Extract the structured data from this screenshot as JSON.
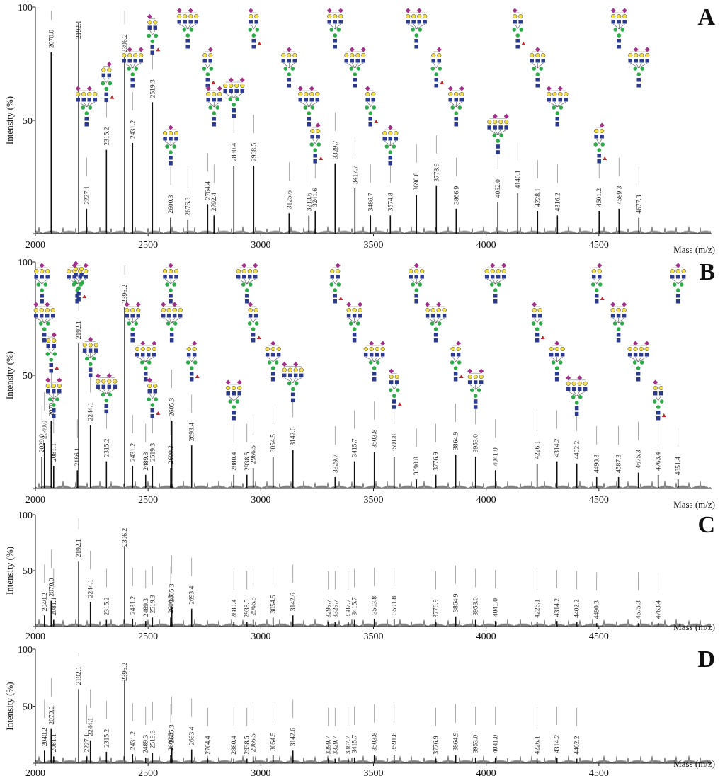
{
  "colors": {
    "hexnac": "#2b3a8c",
    "hexose": "#2eaa4a",
    "galactose": "#f4e04d",
    "neuac": "#a0308a",
    "fucose": "#c0282d",
    "unknown": "#ffffff"
  },
  "chart_data": [
    {
      "panel": "A",
      "type": "bar",
      "xlim": [
        2000,
        5000
      ],
      "ylim": [
        0,
        100
      ],
      "ylabel": "Intensity (%)",
      "xlabel": "Mass (m/z)",
      "yticks": [
        0,
        50,
        100
      ],
      "xticks": [
        2000,
        2500,
        3000,
        3500,
        4000,
        4500
      ],
      "peaks": [
        {
          "mz": 2070.0,
          "y": 80,
          "label": "2070.0"
        },
        {
          "mz": 2192.1,
          "y": 93,
          "label": "2192.1"
        },
        {
          "mz": 2227.1,
          "y": 11,
          "label": "2227.1"
        },
        {
          "mz": 2315.2,
          "y": 37,
          "label": "2315.2"
        },
        {
          "mz": 2396.2,
          "y": 78,
          "label": "2396.2"
        },
        {
          "mz": 2431.2,
          "y": 40,
          "label": "2431.2"
        },
        {
          "mz": 2519.3,
          "y": 58,
          "label": "2519.3"
        },
        {
          "mz": 2600.3,
          "y": 7,
          "label": "2600.3"
        },
        {
          "mz": 2676.3,
          "y": 6,
          "label": "2676.3"
        },
        {
          "mz": 2764.4,
          "y": 13,
          "label": "2764.4"
        },
        {
          "mz": 2792.4,
          "y": 8,
          "label": "2792.4"
        },
        {
          "mz": 2880.4,
          "y": 30,
          "label": "2880.4"
        },
        {
          "mz": 2968.5,
          "y": 30,
          "label": "2968.5"
        },
        {
          "mz": 3125.6,
          "y": 9,
          "label": "3125.6"
        },
        {
          "mz": 3213.6,
          "y": 8,
          "label": "3213.6"
        },
        {
          "mz": 3241.6,
          "y": 10,
          "label": "3241.6"
        },
        {
          "mz": 3329.7,
          "y": 31,
          "label": "3329.7"
        },
        {
          "mz": 3417.7,
          "y": 20,
          "label": "3417.7"
        },
        {
          "mz": 3486.7,
          "y": 8,
          "label": "3486.7"
        },
        {
          "mz": 3574.8,
          "y": 8,
          "label": "3574.8"
        },
        {
          "mz": 3690.8,
          "y": 17,
          "label": "3690.8"
        },
        {
          "mz": 3778.9,
          "y": 21,
          "label": "3778.9"
        },
        {
          "mz": 3866.9,
          "y": 11,
          "label": "3866.9"
        },
        {
          "mz": 4052.0,
          "y": 14,
          "label": "4052.0"
        },
        {
          "mz": 4140.1,
          "y": 18,
          "label": "4140.1"
        },
        {
          "mz": 4228.1,
          "y": 10,
          "label": "4228.1"
        },
        {
          "mz": 4316.2,
          "y": 8,
          "label": "4316.2"
        },
        {
          "mz": 4501.2,
          "y": 10,
          "label": "4501.2"
        },
        {
          "mz": 4589.3,
          "y": 11,
          "label": "4589.3"
        },
        {
          "mz": 4677.3,
          "y": 7,
          "label": "4677.3"
        }
      ]
    },
    {
      "panel": "B",
      "type": "bar",
      "xlim": [
        2000,
        5000
      ],
      "ylim": [
        0,
        100
      ],
      "ylabel": "Intensity (%)",
      "xlabel": "Mass (m/z)",
      "yticks": [
        0,
        50,
        100
      ],
      "xticks": [
        2000,
        2500,
        3000,
        3500,
        4000,
        4500
      ],
      "peaks": [
        {
          "mz": 2029.0,
          "y": 14,
          "label": "2029.0"
        },
        {
          "mz": 2040.0,
          "y": 20,
          "label": "2040.0"
        },
        {
          "mz": 2070.0,
          "y": 30,
          "label": "2070.0"
        },
        {
          "mz": 2081.1,
          "y": 10,
          "label": "2081.1"
        },
        {
          "mz": 2186.1,
          "y": 8,
          "label": "2186.1"
        },
        {
          "mz": 2192.1,
          "y": 64,
          "label": "2192.1"
        },
        {
          "mz": 2244.1,
          "y": 28,
          "label": "2244.1"
        },
        {
          "mz": 2315.2,
          "y": 12,
          "label": "2315.2"
        },
        {
          "mz": 2396.2,
          "y": 80,
          "label": "2396.2"
        },
        {
          "mz": 2431.2,
          "y": 10,
          "label": "2431.2"
        },
        {
          "mz": 2489.3,
          "y": 6,
          "label": "2489.3"
        },
        {
          "mz": 2519.3,
          "y": 10,
          "label": "2519.3"
        },
        {
          "mz": 2600.3,
          "y": 9,
          "label": "2600.3"
        },
        {
          "mz": 2605.3,
          "y": 30,
          "label": "2605.3"
        },
        {
          "mz": 2693.4,
          "y": 19,
          "label": "2693.4"
        },
        {
          "mz": 2880.4,
          "y": 6,
          "label": "2880.4"
        },
        {
          "mz": 2938.5,
          "y": 6,
          "label": "2938.5"
        },
        {
          "mz": 2966.5,
          "y": 9,
          "label": "2966.5"
        },
        {
          "mz": 3054.5,
          "y": 14,
          "label": "3054.5"
        },
        {
          "mz": 3142.6,
          "y": 17,
          "label": "3142.6"
        },
        {
          "mz": 3329.7,
          "y": 5,
          "label": "3329.7"
        },
        {
          "mz": 3415.7,
          "y": 12,
          "label": "3415.7"
        },
        {
          "mz": 3503.8,
          "y": 16,
          "label": "3503.8"
        },
        {
          "mz": 3591.8,
          "y": 14,
          "label": "3591.8"
        },
        {
          "mz": 3690.8,
          "y": 4,
          "label": "3690.8"
        },
        {
          "mz": 3776.9,
          "y": 6,
          "label": "3776.9"
        },
        {
          "mz": 3864.9,
          "y": 15,
          "label": "3864.9"
        },
        {
          "mz": 3953.0,
          "y": 14,
          "label": "3953.0"
        },
        {
          "mz": 4041.0,
          "y": 8,
          "label": "4041.0"
        },
        {
          "mz": 4226.1,
          "y": 11,
          "label": "4226.1"
        },
        {
          "mz": 4314.2,
          "y": 12,
          "label": "4314.2"
        },
        {
          "mz": 4402.2,
          "y": 11,
          "label": "4402.2"
        },
        {
          "mz": 4490.3,
          "y": 5,
          "label": "4490.3"
        },
        {
          "mz": 4587.3,
          "y": 5,
          "label": "4587.3"
        },
        {
          "mz": 4675.3,
          "y": 7,
          "label": "4675.3"
        },
        {
          "mz": 4763.4,
          "y": 6,
          "label": "4763.4"
        },
        {
          "mz": 4851.4,
          "y": 4,
          "label": "4851.4"
        }
      ]
    },
    {
      "panel": "C",
      "type": "bar",
      "xlim": [
        2000,
        5000
      ],
      "ylim": [
        0,
        100
      ],
      "ylabel": "Intensity (%)",
      "xlabel": "Mass (m/z)",
      "yticks": [
        0,
        50,
        100
      ],
      "xticks": [
        2000,
        2500,
        3000,
        3500,
        4000,
        4500
      ],
      "peaks": [
        {
          "mz": 2040.2,
          "y": 10,
          "label": "2040.2"
        },
        {
          "mz": 2070.0,
          "y": 23,
          "label": "2070.0"
        },
        {
          "mz": 2081.1,
          "y": 6,
          "label": "2081.1"
        },
        {
          "mz": 2192.1,
          "y": 58,
          "label": "2192.1"
        },
        {
          "mz": 2244.1,
          "y": 22,
          "label": "2244.1"
        },
        {
          "mz": 2315.2,
          "y": 6,
          "label": "2315.2"
        },
        {
          "mz": 2396.2,
          "y": 72,
          "label": "2396.2"
        },
        {
          "mz": 2431.2,
          "y": 7,
          "label": "2431.2"
        },
        {
          "mz": 2489.3,
          "y": 5,
          "label": "2489.3"
        },
        {
          "mz": 2519.3,
          "y": 8,
          "label": "2519.3"
        },
        {
          "mz": 2600.3,
          "y": 8,
          "label": "2600.3"
        },
        {
          "mz": 2605.3,
          "y": 18,
          "label": "2605.3"
        },
        {
          "mz": 2693.4,
          "y": 16,
          "label": "2693.4"
        },
        {
          "mz": 2880.4,
          "y": 4,
          "label": "2880.4"
        },
        {
          "mz": 2938.5,
          "y": 4,
          "label": "2938.5"
        },
        {
          "mz": 2966.5,
          "y": 6,
          "label": "2966.5"
        },
        {
          "mz": 3054.5,
          "y": 8,
          "label": "3054.5"
        },
        {
          "mz": 3142.6,
          "y": 10,
          "label": "3142.6"
        },
        {
          "mz": 3299.7,
          "y": 4,
          "label": "3299.7"
        },
        {
          "mz": 3329.7,
          "y": 4,
          "label": "3329.7"
        },
        {
          "mz": 3387.7,
          "y": 4,
          "label": "3387.7"
        },
        {
          "mz": 3415.7,
          "y": 6,
          "label": "3415.7"
        },
        {
          "mz": 3503.8,
          "y": 7,
          "label": "3503.8"
        },
        {
          "mz": 3591.8,
          "y": 7,
          "label": "3591.8"
        },
        {
          "mz": 3776.9,
          "y": 4,
          "label": "3776.9"
        },
        {
          "mz": 3864.9,
          "y": 9,
          "label": "3864.9"
        },
        {
          "mz": 3953.0,
          "y": 6,
          "label": "3953.0"
        },
        {
          "mz": 4041.0,
          "y": 5,
          "label": "4041.0"
        },
        {
          "mz": 4226.1,
          "y": 4,
          "label": "4226.1"
        },
        {
          "mz": 4314.2,
          "y": 5,
          "label": "4314.2"
        },
        {
          "mz": 4402.2,
          "y": 4,
          "label": "4402.2"
        },
        {
          "mz": 4490.3,
          "y": 3,
          "label": "4490.3"
        },
        {
          "mz": 4675.3,
          "y": 3,
          "label": "4675.3"
        },
        {
          "mz": 4763.4,
          "y": 3,
          "label": "4763.4"
        }
      ]
    },
    {
      "panel": "D",
      "type": "bar",
      "xlim": [
        2000,
        5000
      ],
      "ylim": [
        0,
        100
      ],
      "ylabel": "Intensity (%)",
      "xlabel": "Mass (m/z)",
      "yticks": [
        0,
        50,
        100
      ],
      "xticks": [
        2000,
        2500,
        3000,
        3500,
        4000,
        4500
      ],
      "peaks": [
        {
          "mz": 2040.2,
          "y": 11,
          "label": "2040.2"
        },
        {
          "mz": 2070.0,
          "y": 30,
          "label": "2070.0"
        },
        {
          "mz": 2081.1,
          "y": 6,
          "label": "2081.1"
        },
        {
          "mz": 2192.1,
          "y": 65,
          "label": "2192.1"
        },
        {
          "mz": 2227.1,
          "y": 6,
          "label": "2227.1"
        },
        {
          "mz": 2244.1,
          "y": 20,
          "label": "2244.1"
        },
        {
          "mz": 2315.2,
          "y": 10,
          "label": "2315.2"
        },
        {
          "mz": 2396.2,
          "y": 73,
          "label": "2396.2"
        },
        {
          "mz": 2431.2,
          "y": 8,
          "label": "2431.2"
        },
        {
          "mz": 2489.3,
          "y": 5,
          "label": "2489.3"
        },
        {
          "mz": 2519.3,
          "y": 9,
          "label": "2519.3"
        },
        {
          "mz": 2600.3,
          "y": 7,
          "label": "2600.3"
        },
        {
          "mz": 2605.3,
          "y": 14,
          "label": "2605.3"
        },
        {
          "mz": 2693.4,
          "y": 12,
          "label": "2693.4"
        },
        {
          "mz": 2764.4,
          "y": 4,
          "label": "2764.4"
        },
        {
          "mz": 2880.4,
          "y": 4,
          "label": "2880.4"
        },
        {
          "mz": 2938.5,
          "y": 4,
          "label": "2938.5"
        },
        {
          "mz": 2966.5,
          "y": 6,
          "label": "2966.5"
        },
        {
          "mz": 3054.5,
          "y": 7,
          "label": "3054.5"
        },
        {
          "mz": 3142.6,
          "y": 11,
          "label": "3142.6"
        },
        {
          "mz": 3299.7,
          "y": 4,
          "label": "3299.7"
        },
        {
          "mz": 3329.7,
          "y": 4,
          "label": "3329.7"
        },
        {
          "mz": 3387.7,
          "y": 4,
          "label": "3387.7"
        },
        {
          "mz": 3415.7,
          "y": 5,
          "label": "3415.7"
        },
        {
          "mz": 3503.8,
          "y": 7,
          "label": "3503.8"
        },
        {
          "mz": 3591.8,
          "y": 7,
          "label": "3591.8"
        },
        {
          "mz": 3776.9,
          "y": 4,
          "label": "3776.9"
        },
        {
          "mz": 3864.9,
          "y": 7,
          "label": "3864.9"
        },
        {
          "mz": 3953.0,
          "y": 5,
          "label": "3953.0"
        },
        {
          "mz": 4041.0,
          "y": 5,
          "label": "4041.0"
        },
        {
          "mz": 4226.1,
          "y": 4,
          "label": "4226.1"
        },
        {
          "mz": 4314.2,
          "y": 5,
          "label": "4314.2"
        },
        {
          "mz": 4402.2,
          "y": 4,
          "label": "4402.2"
        }
      ]
    }
  ]
}
